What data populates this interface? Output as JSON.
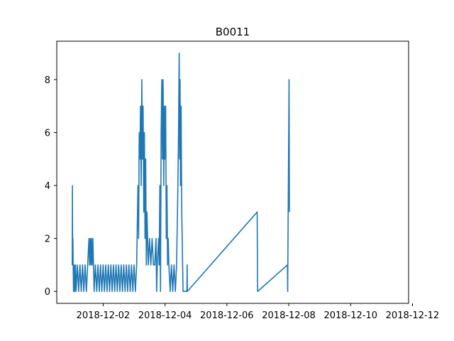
{
  "chart_data": {
    "type": "line",
    "title": "B0011",
    "xlabel": "",
    "ylabel": "",
    "x_axis_type": "date",
    "xlim": [
      "2018-11-30T12:00",
      "2018-12-11T21:00"
    ],
    "ylim": [
      -0.45,
      9.45
    ],
    "x_ticks": [
      "2018-12-02",
      "2018-12-04",
      "2018-12-06",
      "2018-12-08",
      "2018-12-10",
      "2018-12-12"
    ],
    "y_ticks": [
      0,
      2,
      4,
      6,
      8
    ],
    "grid": false,
    "line_color": "#1f77b4",
    "series": [
      {
        "points": [
          [
            "2018-12-01T00:00",
            1
          ],
          [
            "2018-12-01T00:10",
            4
          ],
          [
            "2018-12-01T00:20",
            1
          ],
          [
            "2018-12-01T00:30",
            2
          ],
          [
            "2018-12-01T00:45",
            1
          ],
          [
            "2018-12-01T01:00",
            0
          ],
          [
            "2018-12-01T01:30",
            1
          ],
          [
            "2018-12-01T02:00",
            0
          ],
          [
            "2018-12-01T02:30",
            1
          ],
          [
            "2018-12-01T03:00",
            0
          ],
          [
            "2018-12-01T04:00",
            1
          ],
          [
            "2018-12-01T05:00",
            0
          ],
          [
            "2018-12-01T06:00",
            1
          ],
          [
            "2018-12-01T07:00",
            0
          ],
          [
            "2018-12-01T08:00",
            1
          ],
          [
            "2018-12-01T09:00",
            0
          ],
          [
            "2018-12-01T10:00",
            1
          ],
          [
            "2018-12-01T11:00",
            0
          ],
          [
            "2018-12-01T12:00",
            1
          ],
          [
            "2018-12-01T13:00",
            2
          ],
          [
            "2018-12-01T13:30",
            1
          ],
          [
            "2018-12-01T14:00",
            2
          ],
          [
            "2018-12-01T14:30",
            1
          ],
          [
            "2018-12-01T15:00",
            2
          ],
          [
            "2018-12-01T15:30",
            1
          ],
          [
            "2018-12-01T16:00",
            2
          ],
          [
            "2018-12-01T16:30",
            1
          ],
          [
            "2018-12-01T17:00",
            0
          ],
          [
            "2018-12-01T18:00",
            1
          ],
          [
            "2018-12-01T19:00",
            0
          ],
          [
            "2018-12-01T20:00",
            1
          ],
          [
            "2018-12-01T21:00",
            0
          ],
          [
            "2018-12-01T22:00",
            1
          ],
          [
            "2018-12-01T23:00",
            0
          ],
          [
            "2018-12-02T00:00",
            1
          ],
          [
            "2018-12-02T01:00",
            0
          ],
          [
            "2018-12-02T02:00",
            1
          ],
          [
            "2018-12-02T03:00",
            0
          ],
          [
            "2018-12-02T04:00",
            1
          ],
          [
            "2018-12-02T05:00",
            0
          ],
          [
            "2018-12-02T06:00",
            1
          ],
          [
            "2018-12-02T07:00",
            0
          ],
          [
            "2018-12-02T08:00",
            1
          ],
          [
            "2018-12-02T09:00",
            0
          ],
          [
            "2018-12-02T10:00",
            1
          ],
          [
            "2018-12-02T11:00",
            0
          ],
          [
            "2018-12-02T12:00",
            1
          ],
          [
            "2018-12-02T13:00",
            0
          ],
          [
            "2018-12-02T14:00",
            1
          ],
          [
            "2018-12-02T15:00",
            0
          ],
          [
            "2018-12-02T16:00",
            1
          ],
          [
            "2018-12-02T17:00",
            0
          ],
          [
            "2018-12-02T18:00",
            1
          ],
          [
            "2018-12-02T19:00",
            0
          ],
          [
            "2018-12-02T20:00",
            1
          ],
          [
            "2018-12-02T21:00",
            0
          ],
          [
            "2018-12-02T22:00",
            1
          ],
          [
            "2018-12-02T23:00",
            0
          ],
          [
            "2018-12-03T00:00",
            1
          ],
          [
            "2018-12-03T01:00",
            0
          ],
          [
            "2018-12-03T02:00",
            1
          ],
          [
            "2018-12-03T03:00",
            4
          ],
          [
            "2018-12-03T03:30",
            2
          ],
          [
            "2018-12-03T04:00",
            6
          ],
          [
            "2018-12-03T04:30",
            5
          ],
          [
            "2018-12-03T05:00",
            7
          ],
          [
            "2018-12-03T05:30",
            4
          ],
          [
            "2018-12-03T06:00",
            8
          ],
          [
            "2018-12-03T06:30",
            5
          ],
          [
            "2018-12-03T07:00",
            7
          ],
          [
            "2018-12-03T07:30",
            3
          ],
          [
            "2018-12-03T08:00",
            6
          ],
          [
            "2018-12-03T08:30",
            2
          ],
          [
            "2018-12-03T09:00",
            5
          ],
          [
            "2018-12-03T09:30",
            1
          ],
          [
            "2018-12-03T10:00",
            3
          ],
          [
            "2018-12-03T10:30",
            2
          ],
          [
            "2018-12-03T11:00",
            1
          ],
          [
            "2018-12-03T12:00",
            2
          ],
          [
            "2018-12-03T13:00",
            1
          ],
          [
            "2018-12-03T14:00",
            2
          ],
          [
            "2018-12-03T15:00",
            1
          ],
          [
            "2018-12-03T16:00",
            1
          ],
          [
            "2018-12-03T17:00",
            2
          ],
          [
            "2018-12-03T17:30",
            0
          ],
          [
            "2018-12-03T18:00",
            1
          ],
          [
            "2018-12-03T19:00",
            2
          ],
          [
            "2018-12-03T19:30",
            1
          ],
          [
            "2018-12-03T20:00",
            4
          ],
          [
            "2018-12-03T20:30",
            0
          ],
          [
            "2018-12-03T21:00",
            6
          ],
          [
            "2018-12-03T21:30",
            8
          ],
          [
            "2018-12-03T22:00",
            5
          ],
          [
            "2018-12-03T22:30",
            8
          ],
          [
            "2018-12-03T23:00",
            4
          ],
          [
            "2018-12-03T23:30",
            7
          ],
          [
            "2018-12-04T00:00",
            5
          ],
          [
            "2018-12-04T00:30",
            7
          ],
          [
            "2018-12-04T01:00",
            2
          ],
          [
            "2018-12-04T01:30",
            4
          ],
          [
            "2018-12-04T02:00",
            1
          ],
          [
            "2018-12-04T02:30",
            2
          ],
          [
            "2018-12-04T03:00",
            1
          ],
          [
            "2018-12-04T04:00",
            0
          ],
          [
            "2018-12-04T05:00",
            1
          ],
          [
            "2018-12-04T06:00",
            0
          ],
          [
            "2018-12-04T07:00",
            1
          ],
          [
            "2018-12-04T08:00",
            0
          ],
          [
            "2018-12-04T09:00",
            1
          ],
          [
            "2018-12-04T10:00",
            4
          ],
          [
            "2018-12-04T10:30",
            6
          ],
          [
            "2018-12-04T11:00",
            9
          ],
          [
            "2018-12-04T11:20",
            5
          ],
          [
            "2018-12-04T11:40",
            8
          ],
          [
            "2018-12-04T12:00",
            4
          ],
          [
            "2018-12-04T12:30",
            7
          ],
          [
            "2018-12-04T13:00",
            3
          ],
          [
            "2018-12-04T14:00",
            0
          ],
          [
            "2018-12-04T17:00",
            0
          ],
          [
            "2018-12-04T17:10",
            1
          ],
          [
            "2018-12-04T17:20",
            0
          ],
          [
            "2018-12-06T23:30",
            3
          ],
          [
            "2018-12-06T23:50",
            0
          ],
          [
            "2018-12-07T23:00",
            1
          ],
          [
            "2018-12-07T23:10",
            0
          ],
          [
            "2018-12-08T00:15",
            8
          ],
          [
            "2018-12-08T00:30",
            3
          ]
        ]
      }
    ]
  }
}
